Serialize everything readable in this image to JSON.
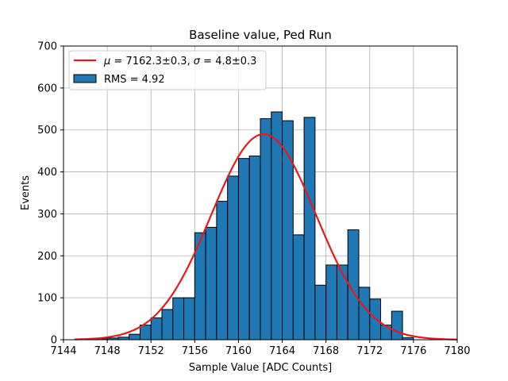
{
  "chart_data": {
    "type": "bar",
    "title": "Baseline value, Ped Run",
    "xlabel": "Sample Value [ADC Counts]",
    "ylabel": "Events",
    "xlim": [
      7144,
      7180
    ],
    "ylim": [
      0,
      700
    ],
    "grid": true,
    "legend_position": "upper-left",
    "xticks": [
      7144,
      7148,
      7152,
      7156,
      7160,
      7164,
      7168,
      7172,
      7176,
      7180
    ],
    "yticks": [
      0,
      100,
      200,
      300,
      400,
      500,
      600,
      700
    ],
    "histogram": {
      "name": "RMS = 4.92",
      "color": "#1f77b4",
      "edge_color": "#000000",
      "bin_edges": [
        7145.0,
        7146.0,
        7147.0,
        7148.0,
        7149.0,
        7150.0,
        7151.0,
        7152.0,
        7153.0,
        7154.0,
        7155.0,
        7156.0,
        7157.0,
        7158.0,
        7159.0,
        7160.0,
        7161.0,
        7162.0,
        7163.0,
        7164.0,
        7165.0,
        7166.0,
        7167.0,
        7168.0,
        7169.0,
        7170.0,
        7171.0,
        7172.0,
        7173.0,
        7174.0,
        7175.0,
        7176.0
      ],
      "counts": [
        0,
        0,
        2,
        4,
        6,
        13,
        35,
        52,
        72,
        100,
        100,
        255,
        268,
        330,
        390,
        432,
        438,
        527,
        543,
        522,
        250,
        530,
        130,
        178,
        178,
        262,
        125,
        97,
        35,
        68,
        5
      ]
    },
    "fit": {
      "name": "μ = 7162.3±0.3, σ = 4.8±0.3",
      "mu_text": "7162.3±0.3",
      "sigma_text": "4.8±0.3",
      "type": "gaussian",
      "mu": 7162.3,
      "sigma": 4.8,
      "amplitude": 490,
      "x_range": [
        7145,
        7180
      ],
      "color": "#e41a1c"
    }
  }
}
